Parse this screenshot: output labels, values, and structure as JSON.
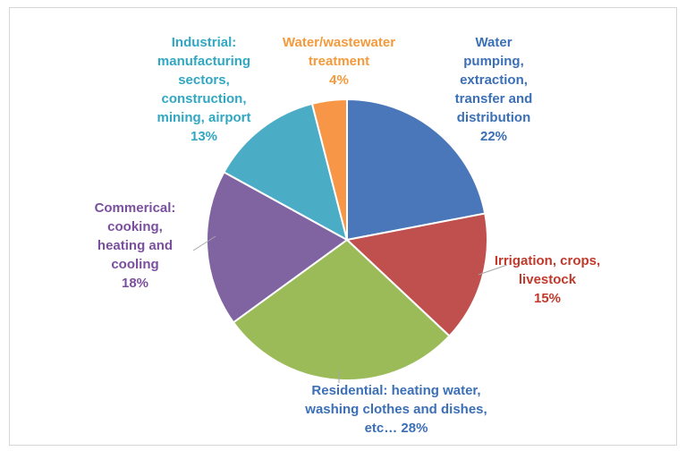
{
  "chart_data": {
    "type": "pie",
    "start": "12 o'clock, clockwise",
    "slices": [
      {
        "lines": [
          "Water",
          "pumping,",
          "extraction,",
          "transfer and",
          "distribution",
          "22%"
        ],
        "value": 22,
        "color": "#4a77ba",
        "label_color": "#3b6fb6"
      },
      {
        "lines": [
          "Irrigation, crops,",
          "livestock",
          "15%"
        ],
        "value": 15,
        "color": "#c0504d",
        "label_color": "#c0392b"
      },
      {
        "lines": [
          "Residential: heating water,",
          "washing clothes and dishes,",
          "etc… 28%"
        ],
        "value": 28,
        "color": "#9bbb59",
        "label_color": "#3b6fb6"
      },
      {
        "lines": [
          "Commerical:",
          "cooking,",
          "heating and",
          "cooling",
          "18%"
        ],
        "value": 18,
        "color": "#8064a2",
        "label_color": "#7a4f9e"
      },
      {
        "lines": [
          "Industrial:",
          "manufacturing",
          "sectors,",
          "construction,",
          "mining, airport",
          "13%"
        ],
        "value": 13,
        "color": "#4bacc6",
        "label_color": "#31a7c2"
      },
      {
        "lines": [
          "Water/wastewater",
          "treatment",
          "4%"
        ],
        "value": 4,
        "color": "#f79646",
        "label_color": "#f39a3c"
      }
    ]
  }
}
